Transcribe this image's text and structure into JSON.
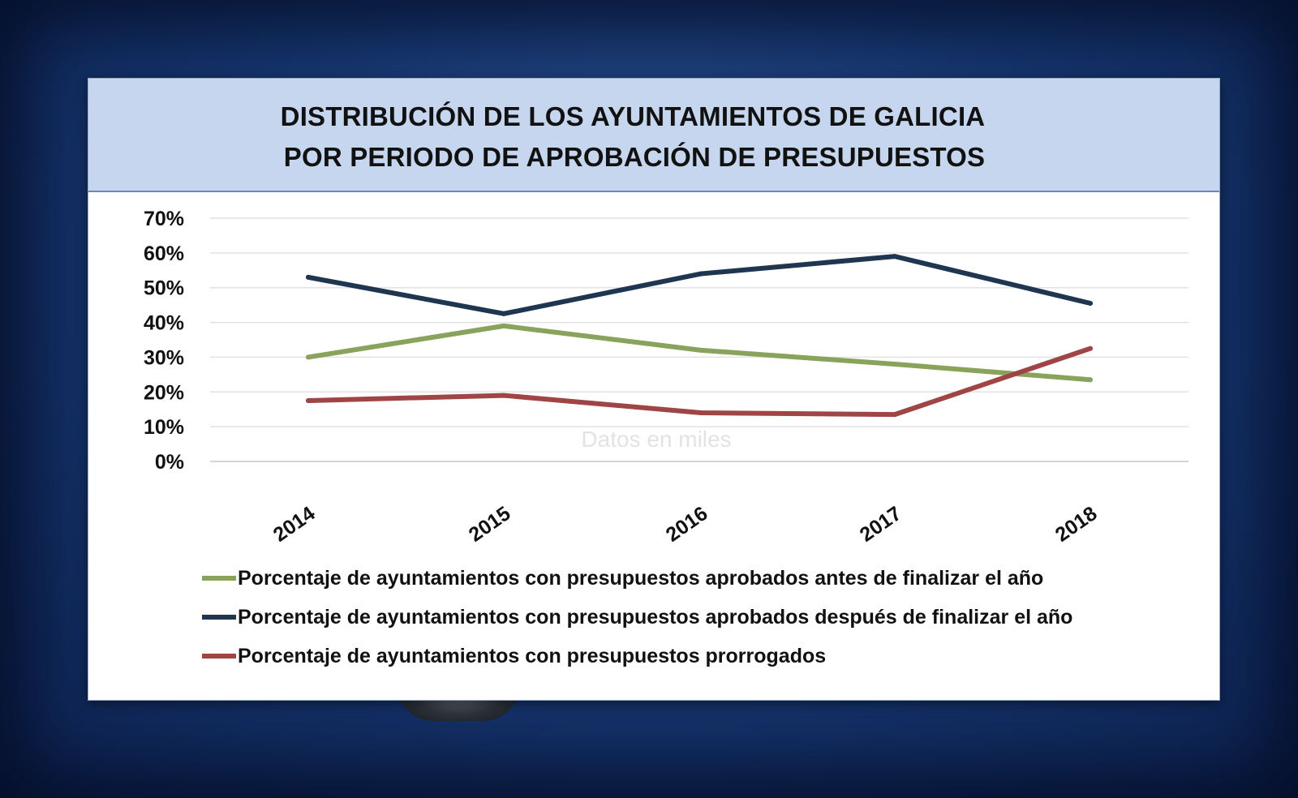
{
  "chart_data": {
    "type": "line",
    "title": [
      "DISTRIBUCIÓN DE LOS AYUNTAMIENTOS DE GALICIA",
      "POR PERIODO DE APROBACIÓN DE PRESUPUESTOS"
    ],
    "categories": [
      "2014",
      "2015",
      "2016",
      "2017",
      "2018"
    ],
    "ylim": [
      0,
      70
    ],
    "yticks": [
      "0%",
      "10%",
      "20%",
      "30%",
      "40%",
      "50%",
      "60%",
      "70%"
    ],
    "grid": true,
    "watermark": "Datos en miles",
    "series": [
      {
        "name": "Porcentaje de ayuntamientos con presupuestos aprobados antes de finalizar el año",
        "color": "#8aa35c",
        "values": [
          30,
          39,
          32,
          28,
          23.5
        ]
      },
      {
        "name": "Porcentaje de ayuntamientos con presupuestos aprobados después de finalizar el año",
        "color": "#1f3550",
        "values": [
          53,
          42.5,
          54,
          59,
          45.5
        ]
      },
      {
        "name": "Porcentaje de ayuntamientos con presupuestos prorrogados",
        "color": "#a04545",
        "values": [
          17.5,
          19,
          14,
          13.5,
          32.5
        ]
      }
    ]
  }
}
